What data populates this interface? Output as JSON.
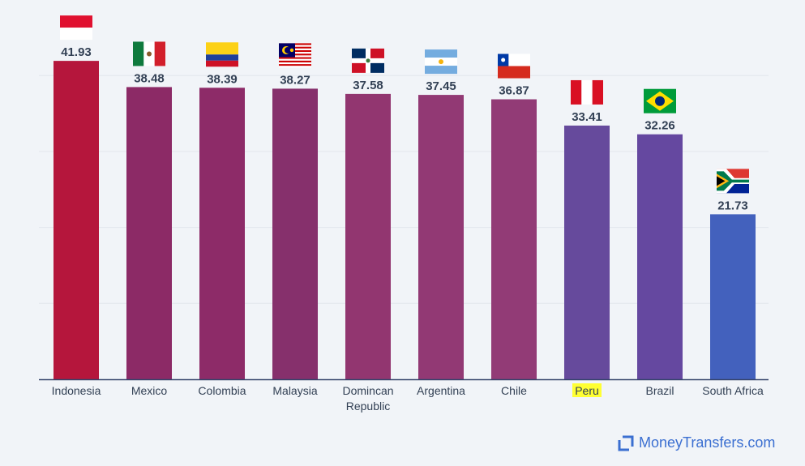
{
  "brand": {
    "name": "MoneyTransfers.com",
    "icon": "moneytransfers-logo-icon",
    "color": "#3b6fd1"
  },
  "chart_data": {
    "type": "bar",
    "categories": [
      "Indonesia",
      "Mexico",
      "Colombia",
      "Malaysia",
      "Domincan Republic",
      "Argentina",
      "Chile",
      "Peru",
      "Brazil",
      "South Africa"
    ],
    "values": [
      41.93,
      38.48,
      38.39,
      38.27,
      37.58,
      37.45,
      36.87,
      33.41,
      32.26,
      21.73
    ],
    "bar_colors": [
      "#b5163c",
      "#8c2a66",
      "#8d2b68",
      "#86306c",
      "#923670",
      "#923974",
      "#923b76",
      "#664a9c",
      "#6548a0",
      "#4361bd"
    ],
    "flags": [
      "indonesia-flag-icon",
      "mexico-flag-icon",
      "colombia-flag-icon",
      "malaysia-flag-icon",
      "dominican-republic-flag-icon",
      "argentina-flag-icon",
      "chile-flag-icon",
      "peru-flag-icon",
      "brazil-flag-icon",
      "south-africa-flag-icon"
    ],
    "highlighted_category": "Peru",
    "highlight_color": "#ffff33",
    "ylim": [
      0,
      50
    ],
    "grid": true,
    "legend": "none",
    "title": "",
    "xlabel": "",
    "ylabel": ""
  }
}
